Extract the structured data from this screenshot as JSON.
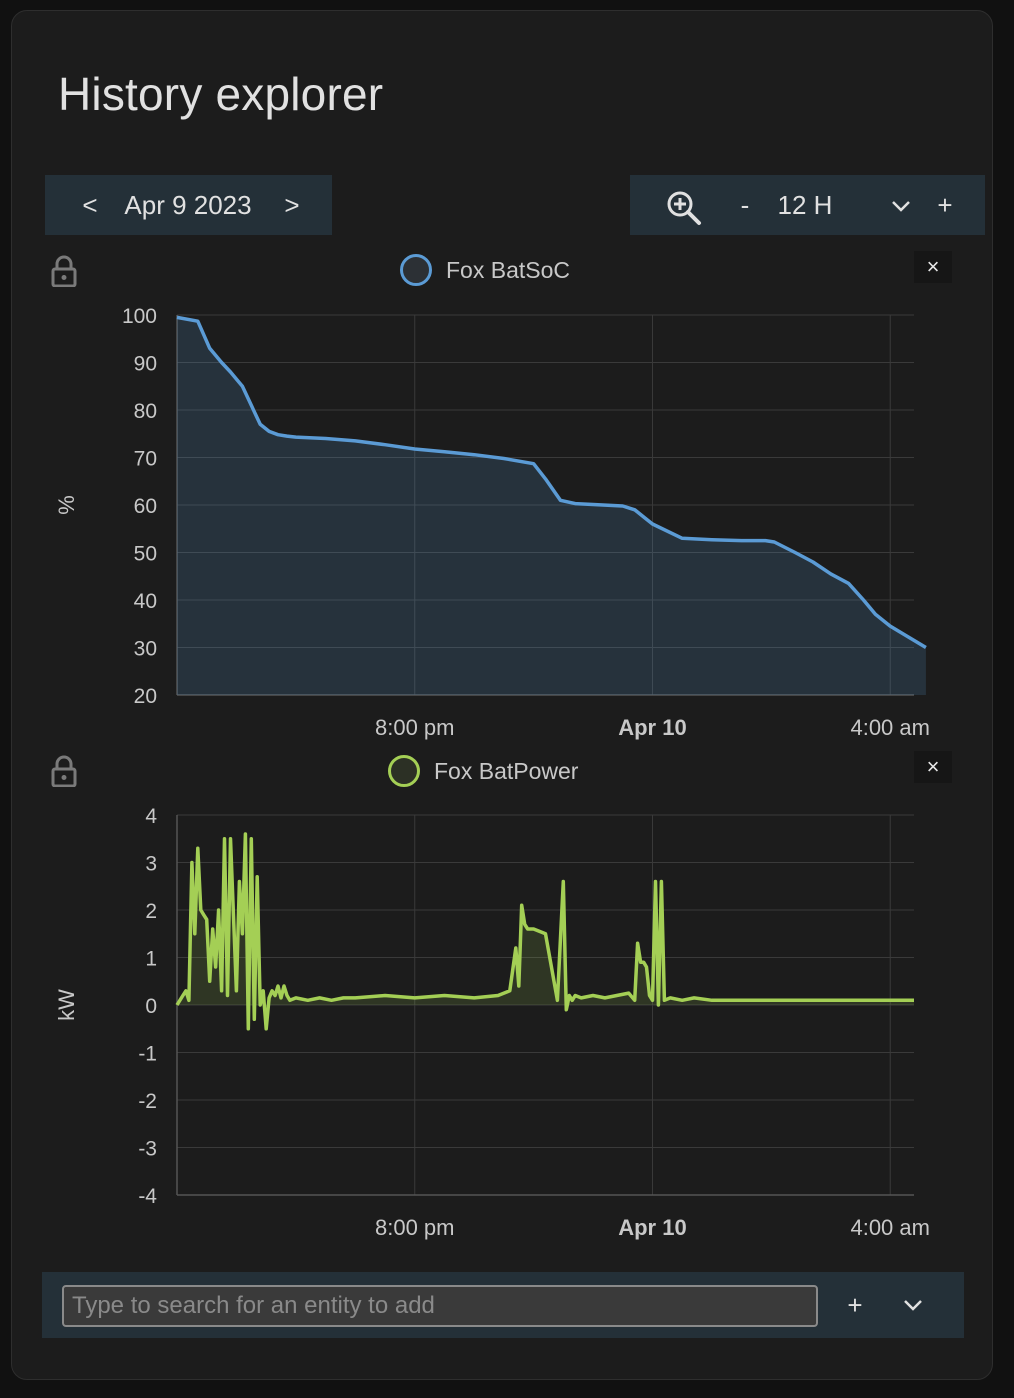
{
  "card": {
    "title": "History explorer"
  },
  "date_nav": {
    "prev_label": "<",
    "date": "Apr 9 2023",
    "next_label": ">"
  },
  "zoom": {
    "icon": "zoom-in-icon",
    "minus_label": "-",
    "range": "12 H",
    "plus_label": "+",
    "dropdown_icon": "chevron-down-icon"
  },
  "search": {
    "placeholder": "Type to search for an entity to add",
    "value": "",
    "add_label": "+",
    "expand_icon": "chevron-down-icon"
  },
  "charts": {
    "soc": {
      "legend": "Fox BatSoC",
      "ylabel": "%",
      "close_label": "×",
      "color": "#5b9bd5"
    },
    "power": {
      "legend": "Fox BatPower",
      "ylabel": "kW",
      "close_label": "×",
      "color": "#a4cf55"
    }
  },
  "chart_data": [
    {
      "type": "area",
      "series": [
        {
          "name": "Fox BatSoC",
          "color": "#5b9bd5",
          "x": [
            16.0,
            16.35,
            16.55,
            16.75,
            16.9,
            17.1,
            17.25,
            17.4,
            17.55,
            17.7,
            17.85,
            18.0,
            18.5,
            19.0,
            19.5,
            20.0,
            20.5,
            21.0,
            21.5,
            22.0,
            22.2,
            22.45,
            22.7,
            23.0,
            23.5,
            23.7,
            23.9,
            24.0,
            24.5,
            25.0,
            25.5,
            25.9,
            26.05,
            26.4,
            26.7,
            27.0,
            27.3,
            27.55,
            27.75,
            28.0,
            28.4,
            28.6
          ],
          "values": [
            99.5,
            98.7,
            93,
            90,
            88,
            85,
            81,
            77,
            75.5,
            74.8,
            74.5,
            74.3,
            74,
            73.5,
            72.7,
            71.8,
            71.2,
            70.6,
            69.8,
            68.7,
            65.5,
            61,
            60.3,
            60.1,
            59.8,
            59,
            57,
            56,
            53,
            52.7,
            52.5,
            52.5,
            52.2,
            50,
            48,
            45.5,
            43.5,
            40,
            37,
            34.5,
            31.5,
            30
          ]
        }
      ],
      "ylabel": "%",
      "ylim": [
        20,
        100
      ],
      "yticks": [
        "100",
        "90",
        "80",
        "70",
        "60",
        "50",
        "40",
        "30",
        "20"
      ],
      "xticks": [
        {
          "label": "8:00 pm",
          "bold": false,
          "at": 20
        },
        {
          "label": "Apr 10",
          "bold": true,
          "at": 24
        },
        {
          "label": "4:00 am",
          "bold": false,
          "at": 28
        }
      ],
      "xlim": [
        16.0,
        28.4
      ],
      "grid": true
    },
    {
      "type": "line",
      "series": [
        {
          "name": "Fox BatPower",
          "color": "#a4cf55",
          "x": [
            16.0,
            16.1,
            16.15,
            16.2,
            16.25,
            16.3,
            16.35,
            16.4,
            16.45,
            16.5,
            16.55,
            16.6,
            16.65,
            16.7,
            16.75,
            16.8,
            16.85,
            16.9,
            17.0,
            17.05,
            17.1,
            17.15,
            17.2,
            17.25,
            17.3,
            17.35,
            17.4,
            17.45,
            17.5,
            17.55,
            17.6,
            17.65,
            17.7,
            17.75,
            17.8,
            17.85,
            17.9,
            18.0,
            18.2,
            18.4,
            18.6,
            18.8,
            19.0,
            19.5,
            20.0,
            20.5,
            21.0,
            21.4,
            21.6,
            21.7,
            21.75,
            21.8,
            21.85,
            21.9,
            22.0,
            22.2,
            22.4,
            22.5,
            22.55,
            22.6,
            22.65,
            22.7,
            22.8,
            23.0,
            23.2,
            23.4,
            23.6,
            23.7,
            23.75,
            23.8,
            23.85,
            23.9,
            23.95,
            24.0,
            24.05,
            24.1,
            24.15,
            24.2,
            24.3,
            24.5,
            24.7,
            25.0,
            25.5,
            26.0,
            26.5,
            27.0,
            27.5,
            28.0,
            28.4
          ],
          "values": [
            0.0,
            0.2,
            0.3,
            0.1,
            3.0,
            1.5,
            3.3,
            2.0,
            1.9,
            1.8,
            0.5,
            1.6,
            0.8,
            2.0,
            0.3,
            3.5,
            0.2,
            3.5,
            0.3,
            2.6,
            1.5,
            3.6,
            -0.5,
            3.5,
            -0.3,
            2.7,
            0.0,
            0.3,
            -0.5,
            0.15,
            0.3,
            0.2,
            0.4,
            0.15,
            0.4,
            0.2,
            0.1,
            0.15,
            0.1,
            0.15,
            0.1,
            0.15,
            0.15,
            0.2,
            0.15,
            0.2,
            0.15,
            0.2,
            0.3,
            1.2,
            0.4,
            2.1,
            1.7,
            1.6,
            1.6,
            1.5,
            0.1,
            2.6,
            -0.1,
            0.2,
            0.1,
            0.2,
            0.15,
            0.2,
            0.15,
            0.2,
            0.25,
            0.1,
            1.3,
            0.9,
            0.9,
            0.8,
            0.2,
            0.1,
            2.6,
            0.0,
            2.6,
            0.1,
            0.15,
            0.1,
            0.15,
            0.1,
            0.1,
            0.1,
            0.1,
            0.1,
            0.1,
            0.1,
            0.1
          ]
        }
      ],
      "ylabel": "kW",
      "ylim": [
        -4,
        4
      ],
      "yticks": [
        "4",
        "3",
        "2",
        "1",
        "0",
        "-1",
        "-2",
        "-3",
        "-4"
      ],
      "xticks": [
        {
          "label": "8:00 pm",
          "bold": false,
          "at": 20
        },
        {
          "label": "Apr 10",
          "bold": true,
          "at": 24
        },
        {
          "label": "4:00 am",
          "bold": false,
          "at": 28
        }
      ],
      "xlim": [
        16.0,
        28.4
      ],
      "grid": true
    }
  ]
}
